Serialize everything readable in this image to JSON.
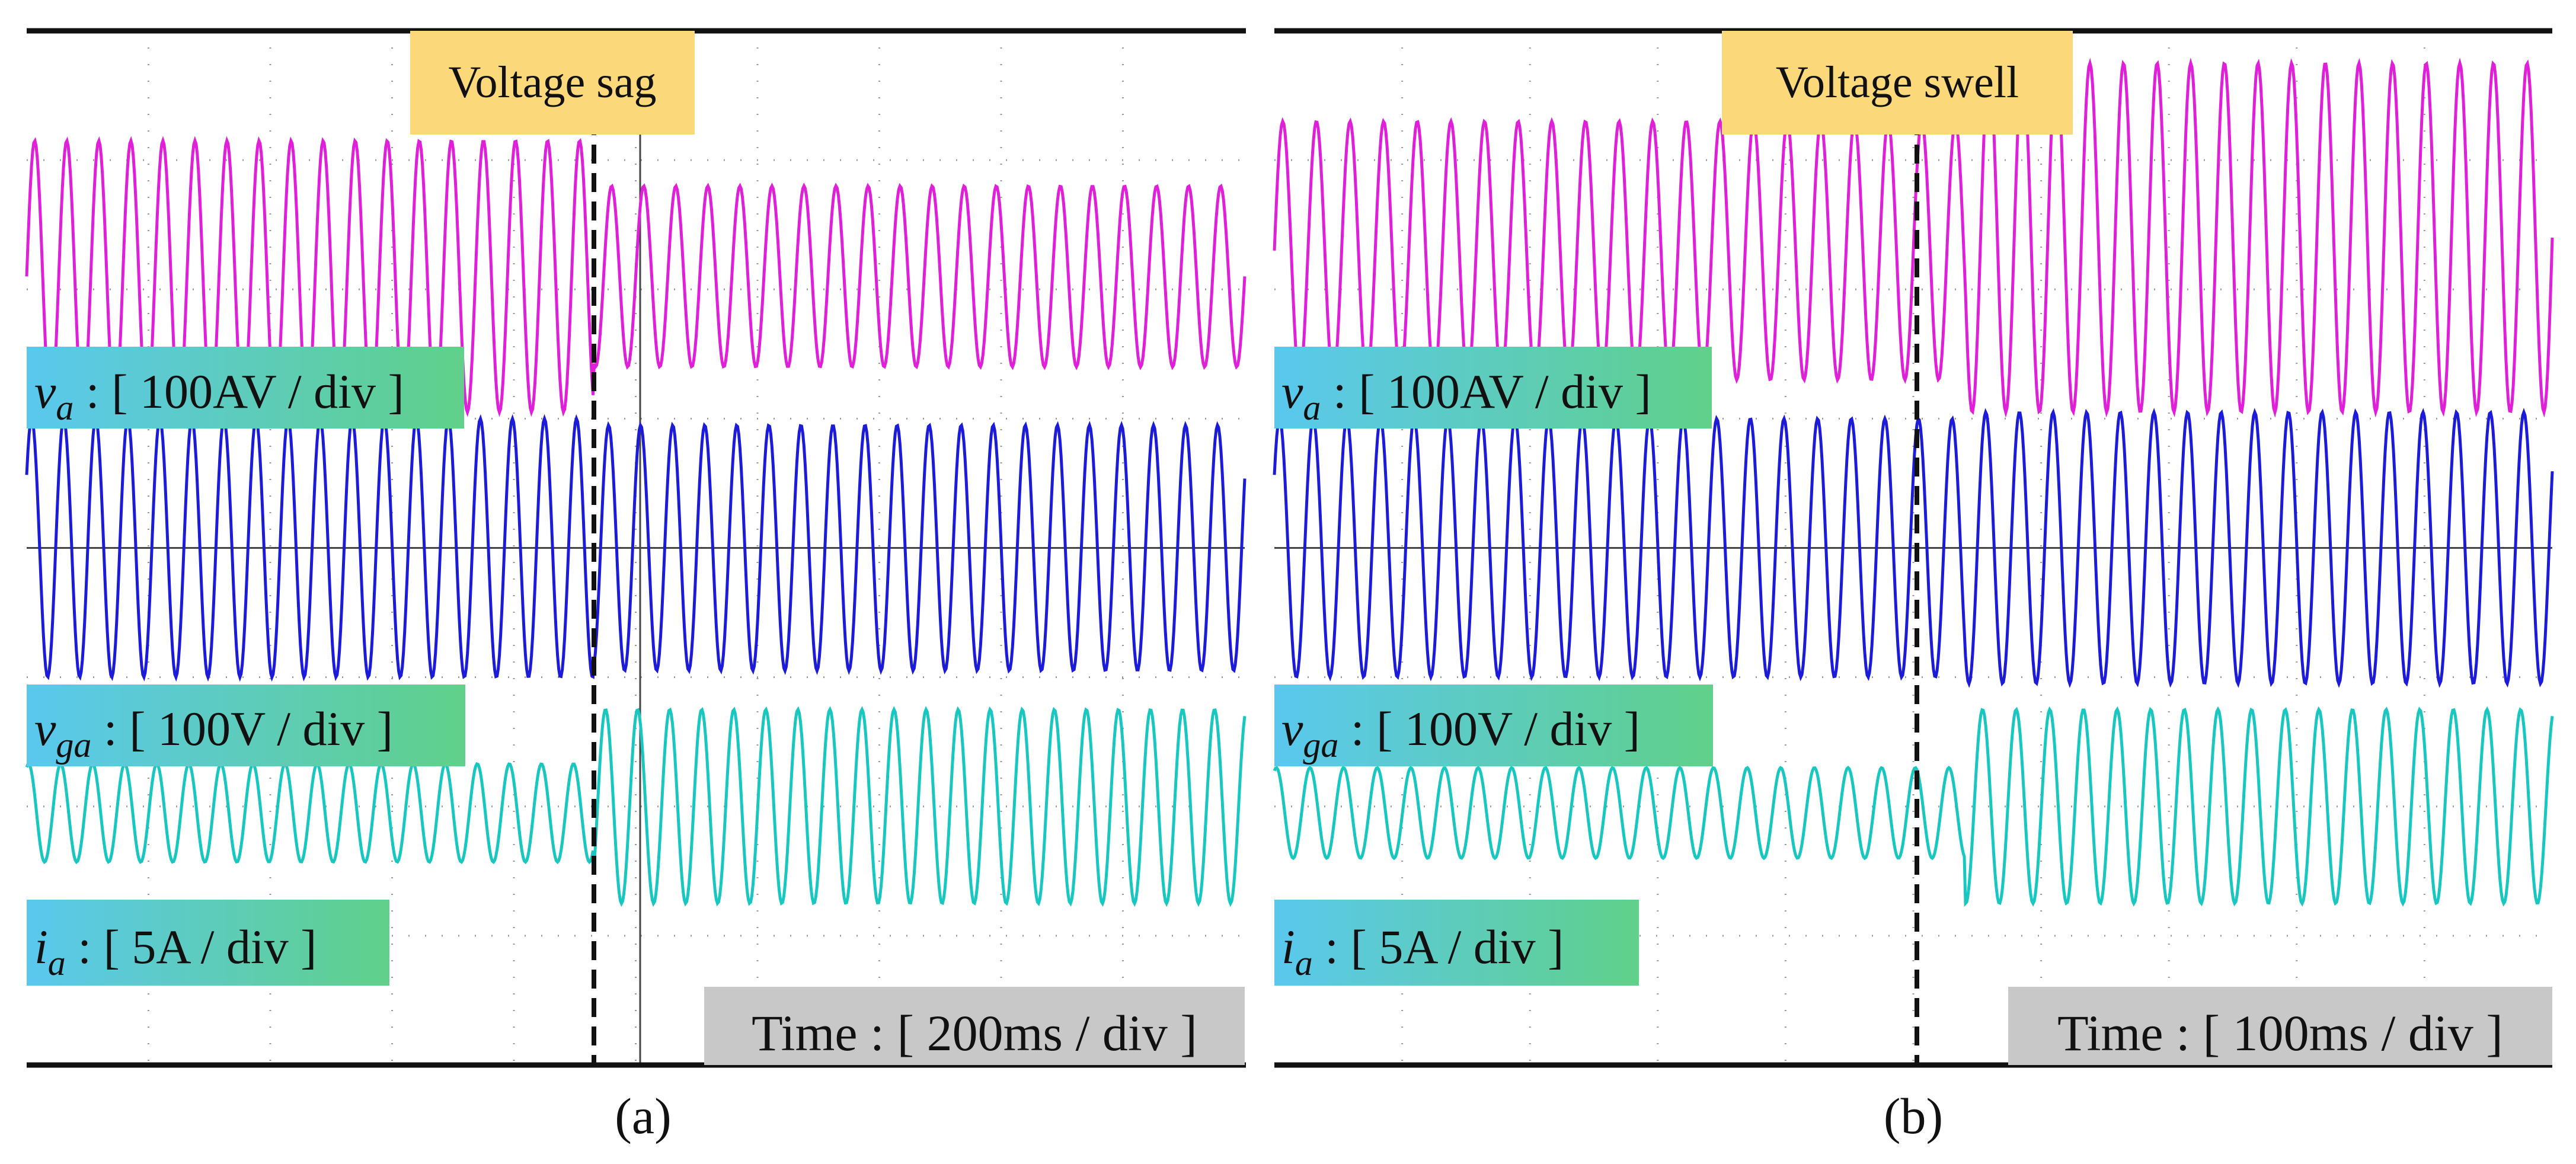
{
  "chart_data": [
    {
      "type": "line",
      "panel_caption": "(a)",
      "event": "Voltage sag",
      "time_scale": "Time : [ 200ms / div ]",
      "time_per_div_ms": 200,
      "divisions": {
        "x": 10,
        "y": 8
      },
      "event_at_div": 4.65,
      "cycles_shown": 38,
      "series": [
        {
          "name": "va",
          "label_var": "v",
          "label_sub": "a",
          "label_scale": " : [ 100AV / div ]",
          "color": "#e020d8",
          "before": {
            "center_div": 1.9,
            "amp_div": 1.05
          },
          "after": {
            "center_div": 1.9,
            "amp_div": 0.7
          }
        },
        {
          "name": "vga",
          "label_var": "v",
          "label_sub": "ga",
          "label_scale": " : [ 100V / div ]",
          "color": "#1c1cd8",
          "before": {
            "center_div": 4.0,
            "amp_div": 1.0
          },
          "after": {
            "center_div": 4.0,
            "amp_div": 0.95
          }
        },
        {
          "name": "ia",
          "label_var": "i",
          "label_sub": "a",
          "label_scale": " : [ 5A / div ]",
          "color": "#18c8c0",
          "before": {
            "center_div": 6.05,
            "amp_div": 0.38
          },
          "after": {
            "center_div": 6.0,
            "amp_div": 0.75
          }
        }
      ]
    },
    {
      "type": "line",
      "panel_caption": "(b)",
      "event": "Voltage swell",
      "time_scale": "Time : [ 100ms / div ]",
      "time_per_div_ms": 100,
      "divisions": {
        "x": 10,
        "y": 8
      },
      "event_at_div": 5.4,
      "cycles_shown": 38,
      "series": [
        {
          "name": "va",
          "label_var": "v",
          "label_sub": "a",
          "label_scale": " : [ 100AV / div ]",
          "color": "#e020d8",
          "before": {
            "center_div": 1.7,
            "amp_div": 1.0
          },
          "after": {
            "center_div": 1.6,
            "amp_div": 1.35
          }
        },
        {
          "name": "vga",
          "label_var": "v",
          "label_sub": "ga",
          "label_scale": " : [ 100V / div ]",
          "color": "#1c1cd8",
          "before": {
            "center_div": 4.0,
            "amp_div": 1.0
          },
          "after": {
            "center_div": 4.0,
            "amp_div": 1.05
          }
        },
        {
          "name": "ia",
          "label_var": "i",
          "label_sub": "a",
          "label_scale": " : [ 5A / div ]",
          "color": "#18c8c0",
          "before": {
            "center_div": 6.05,
            "amp_div": 0.35
          },
          "after": {
            "center_div": 6.0,
            "amp_div": 0.75
          }
        }
      ]
    }
  ],
  "colors": {
    "event_box": "#fbd87a",
    "label_box_start": "#5ac8ee",
    "label_box_end": "#60d08a",
    "time_box": "#c8c8c8",
    "grid": "#9a9a9a",
    "frame": "#111111"
  }
}
